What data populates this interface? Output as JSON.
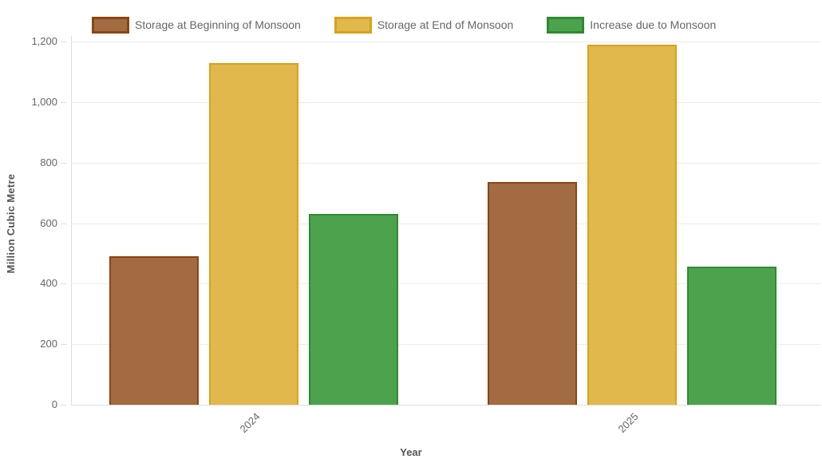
{
  "chart_data": {
    "type": "bar",
    "title": "",
    "categories": [
      "2024",
      "2025"
    ],
    "series": [
      {
        "name": "Storage at Beginning of Monsoon",
        "values": [
          490,
          735
        ],
        "fill": "#a26b42",
        "border": "#8b4513"
      },
      {
        "name": "Storage at End of Monsoon",
        "values": [
          1128,
          1190
        ],
        "fill": "#e0b84c",
        "border": "#d9a21b"
      },
      {
        "name": "Increase due to Monsoon",
        "values": [
          630,
          455
        ],
        "fill": "#4da34d",
        "border": "#2e8b2e"
      }
    ],
    "xlabel": "Year",
    "ylabel": "Million Cubic Metre",
    "ylim": [
      0,
      1200
    ],
    "ytick_step": 200,
    "ytick_labels": [
      "0",
      "200",
      "400",
      "600",
      "800",
      "1,000",
      "1,200"
    ],
    "grid": true,
    "legend_position": "top"
  },
  "colors": {
    "grid": "#ececec",
    "axis": "#dddddd",
    "tick_text": "#666666",
    "axis_title_text": "#555555",
    "legend_text": "#666666",
    "background": "#ffffff"
  }
}
